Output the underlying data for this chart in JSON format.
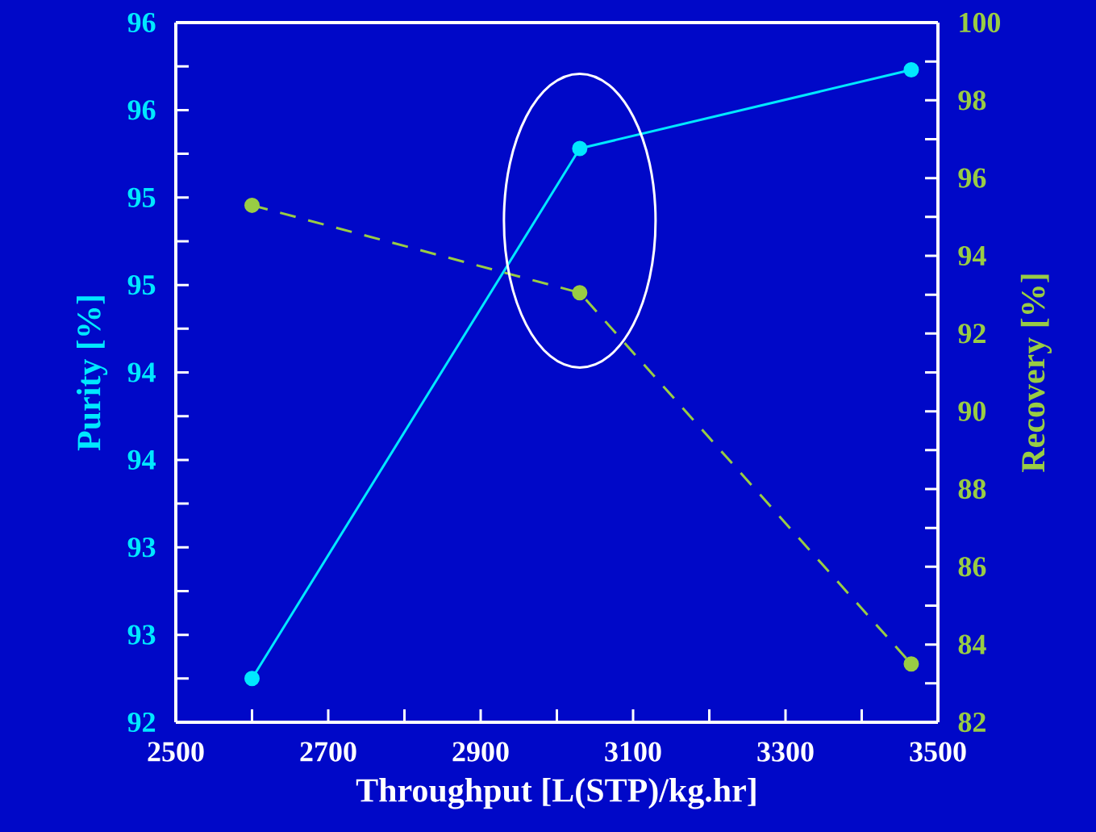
{
  "chart_data": {
    "type": "line",
    "xlabel": "Throughput [L(STP)/kg.hr]",
    "ylabel": "Purity [%]",
    "y2label": "Recovery [%]",
    "x": [
      2600,
      3030,
      3465
    ],
    "xlim": [
      2500,
      3500
    ],
    "xticks": [
      2500,
      {
        "value": 2600,
        "label": null
      },
      2700,
      {
        "value": 2800,
        "label": null
      },
      2900,
      {
        "value": 3000,
        "label": null
      },
      3100,
      {
        "value": 3200,
        "label": null
      },
      3300,
      {
        "value": 3400,
        "label": null
      },
      3500
    ],
    "ylim": [
      92,
      96
    ],
    "yticks": [
      92,
      {
        "value": 92.25,
        "label": null
      },
      {
        "value": 92.5,
        "label": "93"
      },
      {
        "value": 92.75,
        "label": null
      },
      93,
      {
        "value": 93.25,
        "label": null
      },
      {
        "value": 93.5,
        "label": "94"
      },
      {
        "value": 93.75,
        "label": null
      },
      94,
      {
        "value": 94.25,
        "label": null
      },
      {
        "value": 94.5,
        "label": "95"
      },
      {
        "value": 94.75,
        "label": null
      },
      95,
      {
        "value": 95.25,
        "label": null
      },
      {
        "value": 95.5,
        "label": "96"
      },
      {
        "value": 95.75,
        "label": null
      },
      96
    ],
    "y2lim": [
      82,
      100
    ],
    "y2ticks": [
      82,
      {
        "value": 83,
        "label": null
      },
      84,
      {
        "value": 85,
        "label": null
      },
      86,
      {
        "value": 87,
        "label": null
      },
      88,
      {
        "value": 89,
        "label": null
      },
      90,
      {
        "value": 91,
        "label": null
      },
      92,
      {
        "value": 93,
        "label": null
      },
      94,
      {
        "value": 95,
        "label": null
      },
      96,
      {
        "value": 97,
        "label": null
      },
      98,
      {
        "value": 99,
        "label": null
      },
      100
    ],
    "marker": "circle",
    "series": [
      {
        "color": "#00e8ff",
        "values": [
          92.25,
          95.28,
          95.73
        ],
        "line_style": "solid"
      },
      {
        "color": "#99cc44",
        "axis": "y2",
        "values": [
          95.3,
          93.05,
          83.5
        ],
        "line_style": "dashed"
      }
    ]
  }
}
